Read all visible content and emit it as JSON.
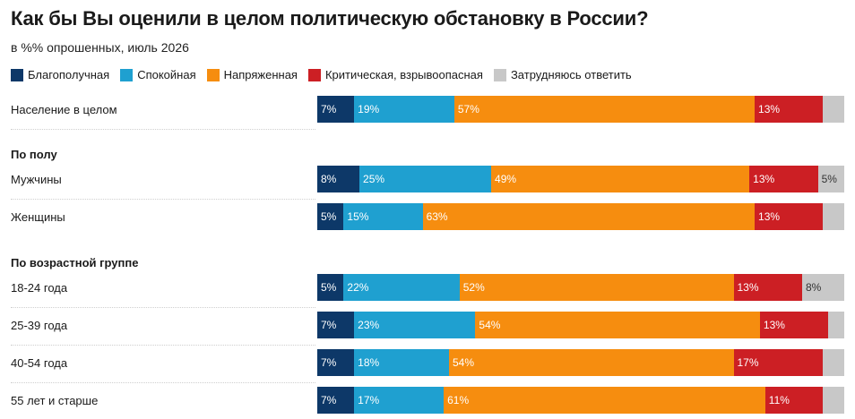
{
  "title": "Как бы Вы оценили в целом политическую обстановку в России?",
  "subtitle": "в %% опрошенных, июль 2026",
  "legend": [
    {
      "label": "Благополучная",
      "color": "#0d3868"
    },
    {
      "label": "Спокойная",
      "color": "#1fa0d0"
    },
    {
      "label": "Напряженная",
      "color": "#f68d0f"
    },
    {
      "label": "Критическая, взрывоопасная",
      "color": "#cc1f24"
    },
    {
      "label": "Затрудняюсь ответить",
      "color": "#c8c8c8"
    }
  ],
  "groups": {
    "by_sex": "По полу",
    "by_age": "По возрастной группе"
  },
  "chart_data": {
    "type": "bar",
    "orientation": "horizontal",
    "stacked": true,
    "title": "Как бы Вы оценили в целом политическую обстановку в России?",
    "subtitle": "в %% опрошенных, июль 2026",
    "categories": [
      "Население в целом",
      "Мужчины",
      "Женщины",
      "18-24 года",
      "25-39 года",
      "40-54 года",
      "55 лет и старше"
    ],
    "series": [
      {
        "name": "Благополучная",
        "values": [
          7,
          8,
          5,
          5,
          7,
          7,
          7
        ]
      },
      {
        "name": "Спокойная",
        "values": [
          19,
          25,
          15,
          22,
          23,
          18,
          17
        ]
      },
      {
        "name": "Напряженная",
        "values": [
          57,
          49,
          63,
          52,
          54,
          54,
          61
        ]
      },
      {
        "name": "Критическая, взрывоопасная",
        "values": [
          13,
          13,
          13,
          13,
          13,
          17,
          11
        ]
      },
      {
        "name": "Затрудняюсь ответить",
        "values": [
          4,
          5,
          4,
          8,
          3,
          4,
          4
        ]
      }
    ],
    "data_labels": [
      [
        "7%",
        "19%",
        "57%",
        "13%",
        ""
      ],
      [
        "8%",
        "25%",
        "49%",
        "13%",
        "5%"
      ],
      [
        "5%",
        "15%",
        "63%",
        "13%",
        ""
      ],
      [
        "5%",
        "22%",
        "52%",
        "13%",
        "8%"
      ],
      [
        "7%",
        "23%",
        "54%",
        "13%",
        ""
      ],
      [
        "7%",
        "18%",
        "54%",
        "17%",
        ""
      ],
      [
        "7%",
        "17%",
        "61%",
        "11%",
        ""
      ]
    ],
    "xlim": [
      0,
      100
    ],
    "legend_position": "top-left",
    "grid": false
  }
}
